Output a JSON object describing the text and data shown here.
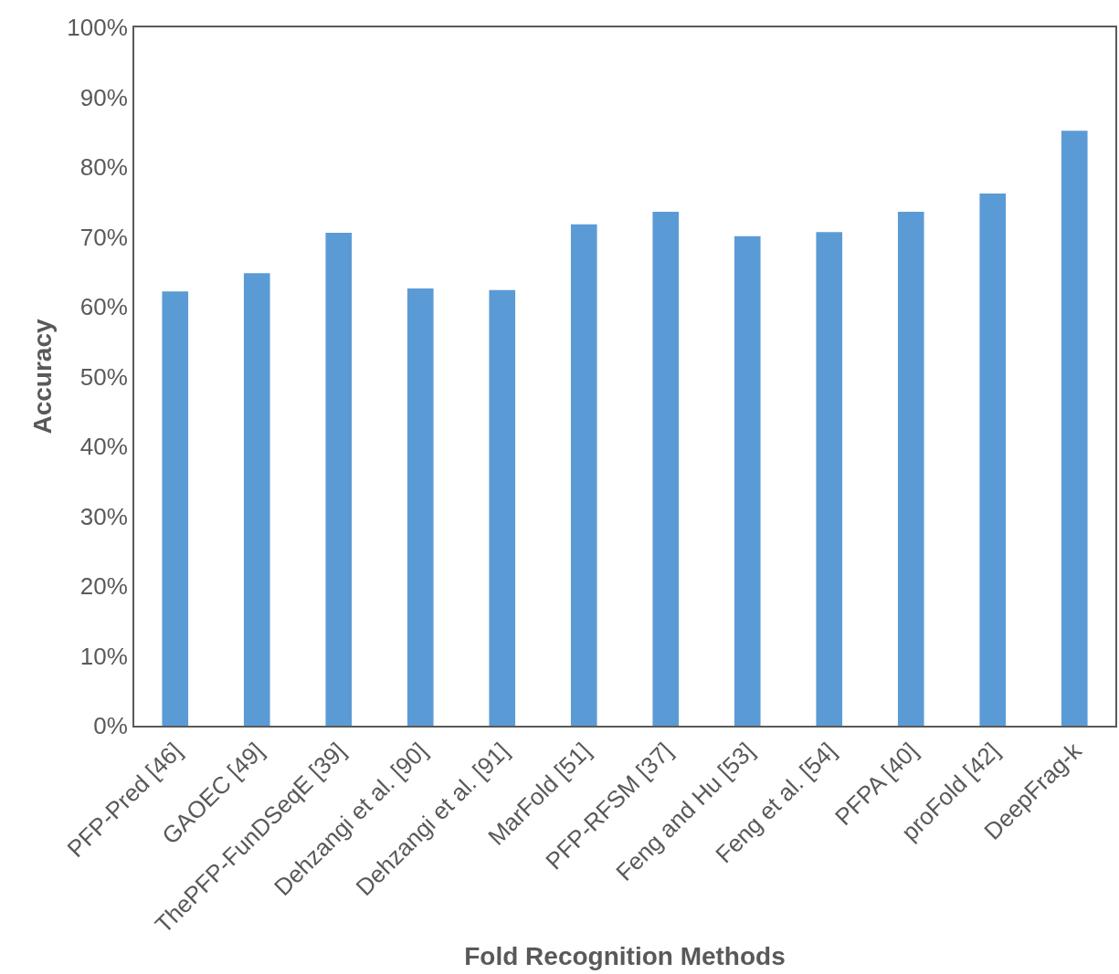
{
  "chart_data": {
    "type": "bar",
    "xlabel": "Fold Recognition Methods",
    "ylabel": "Accuracy",
    "categories": [
      "PFP-Pred [46]",
      "GAOEC [49]",
      "ThePFP-FunDSeqE [39]",
      "Dehzangi et al. [90]",
      "Dehzangi et al. [91]",
      "MarFold [51]",
      "PFP-RFSM [37]",
      "Feng and Hu [53]",
      "Feng et al. [54]",
      "PFPA [40]",
      "proFold [42]",
      "DeepFrag-k"
    ],
    "values": [
      62.2,
      64.8,
      70.6,
      62.6,
      62.4,
      71.8,
      73.6,
      70.1,
      70.7,
      73.6,
      76.2,
      85.2
    ],
    "color": "#5b9bd5",
    "ylim": [
      0,
      100
    ],
    "yticks": [
      {
        "value": 0,
        "label": "0%"
      },
      {
        "value": 10,
        "label": "10%"
      },
      {
        "value": 20,
        "label": "20%"
      },
      {
        "value": 30,
        "label": "30%"
      },
      {
        "value": 40,
        "label": "40%"
      },
      {
        "value": 50,
        "label": "50%"
      },
      {
        "value": 60,
        "label": "60%"
      },
      {
        "value": 70,
        "label": "70%"
      },
      {
        "value": 80,
        "label": "80%"
      },
      {
        "value": 90,
        "label": "90%"
      },
      {
        "value": 100,
        "label": "100%"
      }
    ],
    "tick_labels": [
      "x",
      "y"
    ]
  }
}
